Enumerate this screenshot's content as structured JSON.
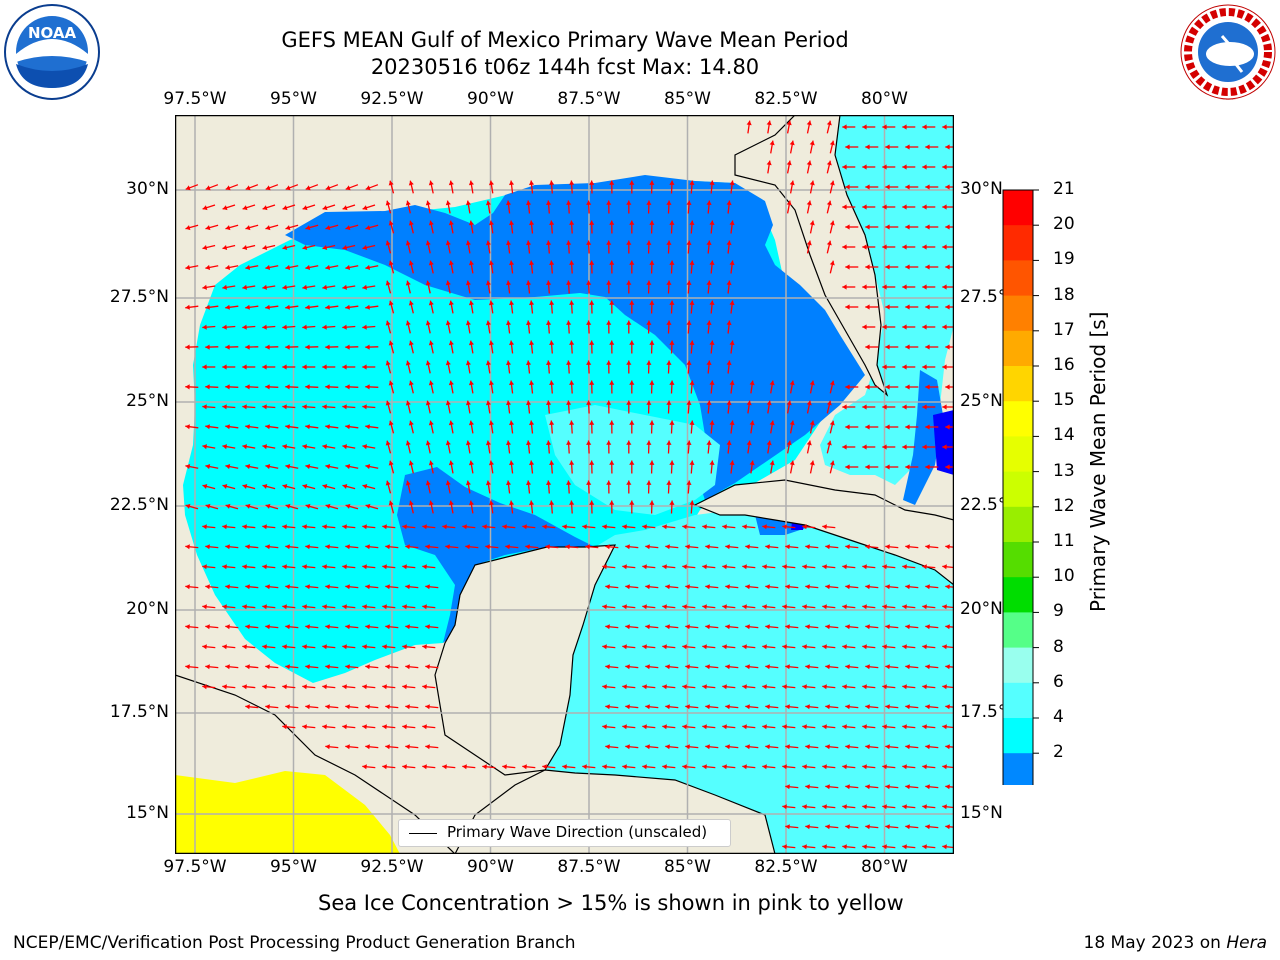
{
  "title": {
    "line1": "GEFS MEAN Gulf of Mexico Primary Wave Mean Period",
    "line2": "20230516 t06z 144h fcst   Max: 14.80"
  },
  "axes": {
    "lon_ticks": [
      "97.5°W",
      "95°W",
      "92.5°W",
      "90°W",
      "87.5°W",
      "85°W",
      "82.5°W",
      "80°W"
    ],
    "lat_ticks_left": [
      "30°N",
      "27.5°N",
      "25°N",
      "22.5°N",
      "20°N",
      "17.5°N",
      "15°N"
    ],
    "lat_ticks_right": [
      "30°N",
      "27.5°",
      "25°N",
      "22.5°",
      "20°N",
      "17.5°",
      "15°N"
    ]
  },
  "colorbar": {
    "label": "Primary Wave Mean Period [s]",
    "ticks": [
      "21",
      "20",
      "19",
      "18",
      "17",
      "16",
      "15",
      "14",
      "13",
      "12",
      "11",
      "10",
      "9",
      "8",
      "6",
      "4",
      "2"
    ],
    "colors": [
      "#ff0000",
      "#ff2a00",
      "#ff5500",
      "#ff8000",
      "#ffaa00",
      "#ffd500",
      "#ffff00",
      "#e6ff00",
      "#ccff00",
      "#99ee00",
      "#55dd00",
      "#00dd00",
      "#55ff88",
      "#99ffee",
      "#55ffff",
      "#00ffff",
      "#0088ff"
    ],
    "under_color": "#0000ff"
  },
  "legend": {
    "text": "Primary Wave Direction (unscaled)"
  },
  "note": "Sea Ice Concentration > 15% is shown in pink to yellow",
  "footer": {
    "left": "NCEP/EMC/Verification Post Processing Product Generation Branch",
    "right_prefix": "18 May 2023 on ",
    "right_host": "Hera"
  },
  "logos": {
    "left_text": "NOAA",
    "right_text": "NATIONAL WEATHER SERVICE"
  },
  "map_colors": {
    "land": "#efecdc",
    "ocean_4_6": "#00ffff",
    "ocean_6_8": "#55ffff",
    "ocean_2_4": "#0080ff",
    "ocean_lt2": "#0000ff",
    "ice_high": "#ffff00",
    "arrow": "#ff0000"
  }
}
